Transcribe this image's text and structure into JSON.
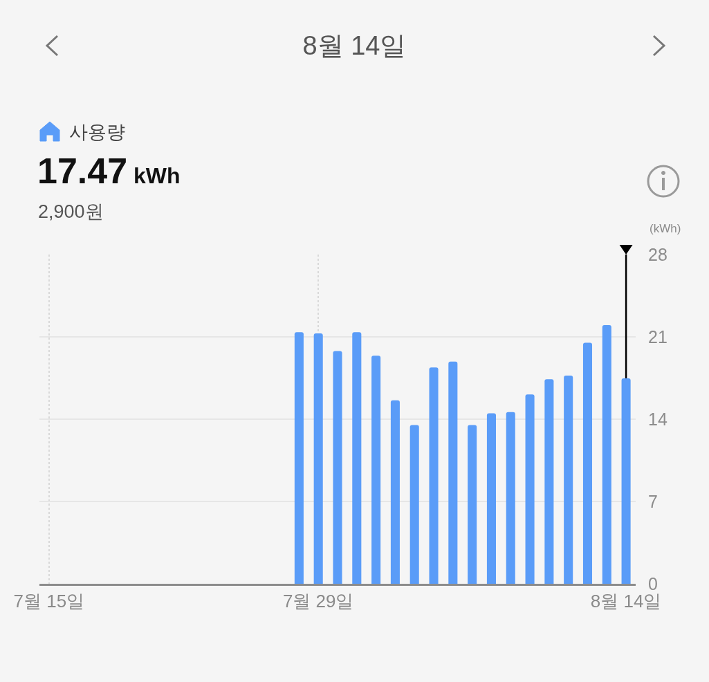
{
  "chart_data": {
    "type": "bar",
    "title": "8월 14일",
    "annotations": [
      "사용량",
      "17.47 kWh",
      "2,900원"
    ],
    "ylabel": "(kWh)",
    "categories": [
      "7월 15일",
      null,
      null,
      null,
      null,
      null,
      null,
      null,
      null,
      null,
      null,
      null,
      null,
      null,
      "7월 29일",
      null,
      null,
      null,
      null,
      null,
      null,
      null,
      null,
      null,
      null,
      null,
      null,
      null,
      null,
      null,
      "8월 14일"
    ],
    "values": [
      null,
      null,
      null,
      null,
      null,
      null,
      null,
      null,
      null,
      null,
      null,
      null,
      null,
      21.4,
      21.3,
      19.8,
      21.4,
      19.4,
      15.6,
      13.5,
      18.4,
      18.9,
      13.5,
      14.5,
      14.6,
      16.1,
      17.4,
      17.7,
      20.5,
      22.0,
      17.47
    ],
    "color": "#5a9cf8",
    "ylim": [
      0,
      28
    ],
    "yticks": [
      0,
      7,
      14,
      21,
      28
    ],
    "grid": true,
    "ref_lines": [
      {
        "axis": "x",
        "value": "8월 14일",
        "color": "#000000"
      }
    ]
  }
}
